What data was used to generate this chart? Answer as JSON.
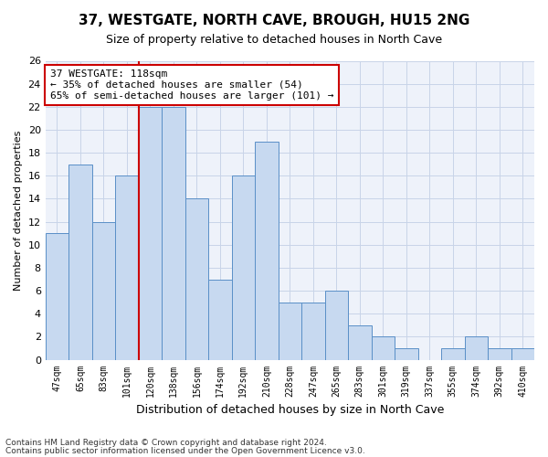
{
  "title": "37, WESTGATE, NORTH CAVE, BROUGH, HU15 2NG",
  "subtitle": "Size of property relative to detached houses in North Cave",
  "xlabel": "Distribution of detached houses by size in North Cave",
  "ylabel": "Number of detached properties",
  "bin_labels": [
    "47sqm",
    "65sqm",
    "83sqm",
    "101sqm",
    "120sqm",
    "138sqm",
    "156sqm",
    "174sqm",
    "192sqm",
    "210sqm",
    "228sqm",
    "247sqm",
    "265sqm",
    "283sqm",
    "301sqm",
    "319sqm",
    "337sqm",
    "355sqm",
    "374sqm",
    "392sqm",
    "410sqm"
  ],
  "bar_heights": [
    11,
    17,
    12,
    16,
    22,
    22,
    14,
    7,
    16,
    19,
    5,
    5,
    6,
    3,
    2,
    1,
    0,
    1,
    2,
    1,
    1
  ],
  "bar_color": "#c7d9f0",
  "bar_edge_color": "#5a8fc7",
  "highlight_bar_index": 4,
  "highlight_color": "#cc0000",
  "ylim": [
    0,
    26
  ],
  "yticks": [
    0,
    2,
    4,
    6,
    8,
    10,
    12,
    14,
    16,
    18,
    20,
    22,
    24,
    26
  ],
  "annotation_text": "37 WESTGATE: 118sqm\n← 35% of detached houses are smaller (54)\n65% of semi-detached houses are larger (101) →",
  "annotation_box_color": "#ffffff",
  "annotation_box_edge": "#cc0000",
  "grid_color": "#c8d4e8",
  "bg_color": "#eef2fa",
  "footer_line1": "Contains HM Land Registry data © Crown copyright and database right 2024.",
  "footer_line2": "Contains public sector information licensed under the Open Government Licence v3.0."
}
